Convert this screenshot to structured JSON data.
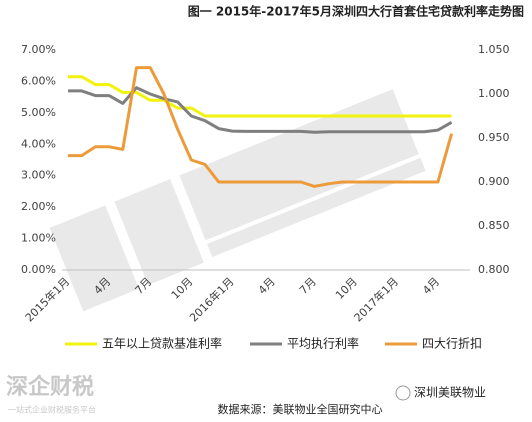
{
  "chart_data": {
    "type": "line",
    "title": "图一  2015年-2017年5月深圳四大行首套住宅贷款利率走势图",
    "categories": [
      "2015年1月",
      null,
      null,
      "4月",
      null,
      null,
      "7月",
      null,
      null,
      "10月",
      null,
      null,
      "2016年1月",
      null,
      null,
      "4月",
      null,
      null,
      "7月",
      null,
      null,
      "10月",
      null,
      null,
      "2017年1月",
      null,
      null,
      "4月",
      null
    ],
    "ylim": [
      0,
      7
    ],
    "yticks": [
      {
        "value": 0,
        "label": "0.00%"
      },
      {
        "value": 1,
        "label": "1.00%"
      },
      {
        "value": 2,
        "label": "2.00%"
      },
      {
        "value": 3,
        "label": "3.00%"
      },
      {
        "value": 4,
        "label": "4.00%"
      },
      {
        "value": 5,
        "label": "5.00%"
      },
      {
        "value": 6,
        "label": "6.00%"
      },
      {
        "value": 7,
        "label": "7.00%"
      }
    ],
    "y2lim": [
      0.8,
      1.05
    ],
    "y2ticks": [
      {
        "value": 0.8,
        "label": "0.800"
      },
      {
        "value": 0.85,
        "label": "0.850"
      },
      {
        "value": 0.9,
        "label": "0.900"
      },
      {
        "value": 0.95,
        "label": "0.950"
      },
      {
        "value": 1.0,
        "label": "1.000"
      },
      {
        "value": 1.05,
        "label": "1.050"
      }
    ],
    "grid": false,
    "legend": "bottom",
    "series": [
      {
        "name": "五年以上贷款基准利率",
        "color": "#f2f20c",
        "values": [
          6.15,
          6.15,
          5.9,
          5.9,
          5.65,
          5.65,
          5.4,
          5.4,
          5.15,
          5.15,
          4.9,
          4.9,
          4.9,
          4.9,
          4.9,
          4.9,
          4.9,
          4.9,
          4.9,
          4.9,
          4.9,
          4.9,
          4.9,
          4.9,
          4.9,
          4.9,
          4.9,
          4.9,
          4.9
        ]
      },
      {
        "name": "平均执行利率",
        "color": "#7f7f7f",
        "values": [
          5.7,
          5.7,
          5.55,
          5.55,
          5.3,
          5.8,
          5.6,
          5.45,
          5.35,
          4.9,
          4.75,
          4.5,
          4.42,
          4.41,
          4.41,
          4.41,
          4.41,
          4.41,
          4.38,
          4.4,
          4.4,
          4.4,
          4.4,
          4.4,
          4.4,
          4.4,
          4.4,
          4.45,
          4.7
        ]
      },
      {
        "name": "四大行折扣",
        "color": "#ed9b3a",
        "axis": "y2",
        "values": [
          0.93,
          0.93,
          0.94,
          0.94,
          0.937,
          1.03,
          1.03,
          1.0,
          0.96,
          0.925,
          0.92,
          0.9,
          0.9,
          0.9,
          0.9,
          0.9,
          0.9,
          0.9,
          0.895,
          0.898,
          0.9,
          0.9,
          0.9,
          0.9,
          0.9,
          0.9,
          0.9,
          0.9,
          0.955
        ]
      }
    ]
  },
  "footer": {
    "brand": "深企财税",
    "slogan": "一站式企业财税服务平台",
    "source": "数据来源：美联物业全国研究中心",
    "account": "深圳美联物业"
  }
}
